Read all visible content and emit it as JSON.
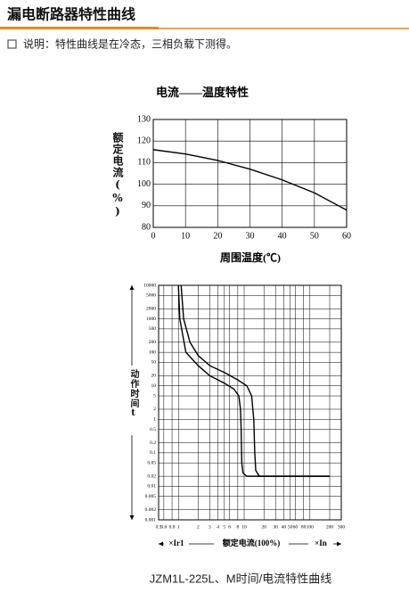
{
  "header": {
    "title": "漏电断路器特性曲线",
    "note": "说明：特性曲线是在冷态，三相负载下测得。"
  },
  "chart_data": [
    {
      "type": "line",
      "title": "电流——温度特性",
      "x_label": "周围温度(℃)",
      "y_label": "额定电流(%)",
      "x": [
        0,
        10,
        20,
        30,
        40,
        50,
        60
      ],
      "values": [
        116,
        114,
        111,
        107,
        102,
        96,
        88
      ],
      "color": "#000000",
      "xlim": [
        0,
        60
      ],
      "xticks": [
        0,
        10,
        20,
        30,
        40,
        50,
        60
      ],
      "ylim": [
        80,
        130
      ],
      "yticks": [
        80,
        90,
        100,
        110,
        120,
        130
      ],
      "grid": true
    },
    {
      "type": "line",
      "x_label": "额定电流(100%)",
      "y_label": "动作时间t",
      "annotations": [
        "×Ir1",
        "×In"
      ],
      "xscale": "log",
      "yscale": "log",
      "grid": true,
      "xlim": [
        0.5,
        300
      ],
      "xticks": [
        0.5,
        0.6,
        0.8,
        1,
        2,
        3,
        4,
        5,
        6,
        8,
        10,
        20,
        30,
        40,
        50,
        60,
        80,
        100,
        200,
        300
      ],
      "ylim": [
        0.001,
        10000
      ],
      "yticks": [
        0.001,
        0.002,
        0.005,
        0.01,
        0.02,
        0.05,
        0.1,
        0.2,
        0.5,
        1,
        2,
        5,
        10,
        20,
        50,
        100,
        200,
        500,
        1000,
        2000,
        5000,
        10000
      ],
      "series": [
        {
          "color": "#000000",
          "x": [
            1,
            1.05,
            1.3,
            2,
            3,
            5,
            7,
            8.3,
            8.8,
            9,
            9.2,
            9.6,
            11,
            200
          ],
          "values": [
            10000,
            1000,
            100,
            40,
            20,
            12,
            8,
            5,
            2,
            0.5,
            0.05,
            0.025,
            0.02,
            0.02
          ]
        },
        {
          "color": "#000000",
          "x": [
            1.1,
            1.2,
            1.5,
            2,
            3,
            5,
            8,
            11,
            13,
            14,
            14.5,
            15,
            17,
            200
          ],
          "values": [
            10000,
            1000,
            200,
            80,
            40,
            25,
            15,
            10,
            5,
            1,
            0.1,
            0.03,
            0.02,
            0.02
          ]
        }
      ]
    }
  ],
  "caption": "JZM1L-225L、M时间/电流特性曲线"
}
